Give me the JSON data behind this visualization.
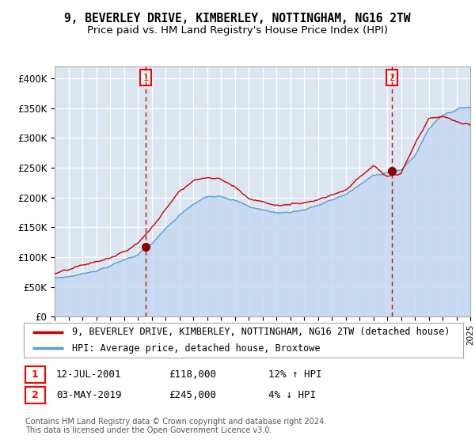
{
  "title": "9, BEVERLEY DRIVE, KIMBERLEY, NOTTINGHAM, NG16 2TW",
  "subtitle": "Price paid vs. HM Land Registry's House Price Index (HPI)",
  "x_start_year": 1995,
  "x_end_year": 2025,
  "ylim": [
    0,
    420000
  ],
  "yticks": [
    0,
    50000,
    100000,
    150000,
    200000,
    250000,
    300000,
    350000,
    400000
  ],
  "ytick_labels": [
    "£0",
    "£50K",
    "£100K",
    "£150K",
    "£200K",
    "£250K",
    "£300K",
    "£350K",
    "£400K"
  ],
  "sale1_date_str": "12-JUL-2001",
  "sale1_price": 118000,
  "sale1_hpi_pct": "12%",
  "sale1_hpi_dir": "↑",
  "sale2_date_str": "03-MAY-2019",
  "sale2_price": 245000,
  "sale2_hpi_pct": "4%",
  "sale2_hpi_dir": "↓",
  "line1_label": "9, BEVERLEY DRIVE, KIMBERLEY, NOTTINGHAM, NG16 2TW (detached house)",
  "line2_label": "HPI: Average price, detached house, Broxtowe",
  "line1_color": "#cc0000",
  "line2_color": "#5b9bd5",
  "fill_color": "#c5d9f1",
  "vline_color": "#cc0000",
  "plot_bg_color": "#dce6f1",
  "grid_color": "#ffffff",
  "footer": "Contains HM Land Registry data © Crown copyright and database right 2024.\nThis data is licensed under the Open Government Licence v3.0.",
  "title_fontsize": 10.5,
  "subtitle_fontsize": 9.5,
  "tick_fontsize": 8.5,
  "legend_fontsize": 8.5,
  "footer_fontsize": 7.0,
  "sale1_yr": 2001.58,
  "sale2_yr": 2019.33
}
